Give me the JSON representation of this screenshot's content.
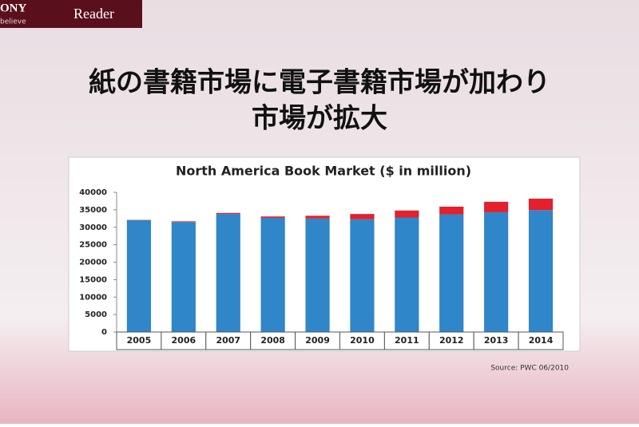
{
  "header": {
    "brand": "ONY",
    "tagline": "believe",
    "product": "Reader"
  },
  "slide": {
    "title_line1": "紙の書籍市場に電子書籍市場が加わり",
    "title_line2": "市場が拡大"
  },
  "chart_data": {
    "type": "stacked_bar",
    "title": "North America Book Market ($ in million)",
    "source": "Source: PWC 06/2010",
    "categories": [
      "2005",
      "2006",
      "2007",
      "2008",
      "2009",
      "2010",
      "2011",
      "2012",
      "2013",
      "2014"
    ],
    "series": [
      {
        "color": "#2f86c9",
        "values": [
          32000,
          31500,
          33800,
          32700,
          32500,
          32300,
          32800,
          33700,
          34300,
          34900
        ]
      },
      {
        "color": "#e3202b",
        "values": [
          100,
          200,
          300,
          400,
          800,
          1500,
          2000,
          2200,
          3000,
          3300
        ]
      }
    ],
    "ylim": [
      0,
      40000
    ],
    "yticks": [
      0,
      5000,
      10000,
      15000,
      20000,
      25000,
      30000,
      35000,
      40000
    ]
  }
}
